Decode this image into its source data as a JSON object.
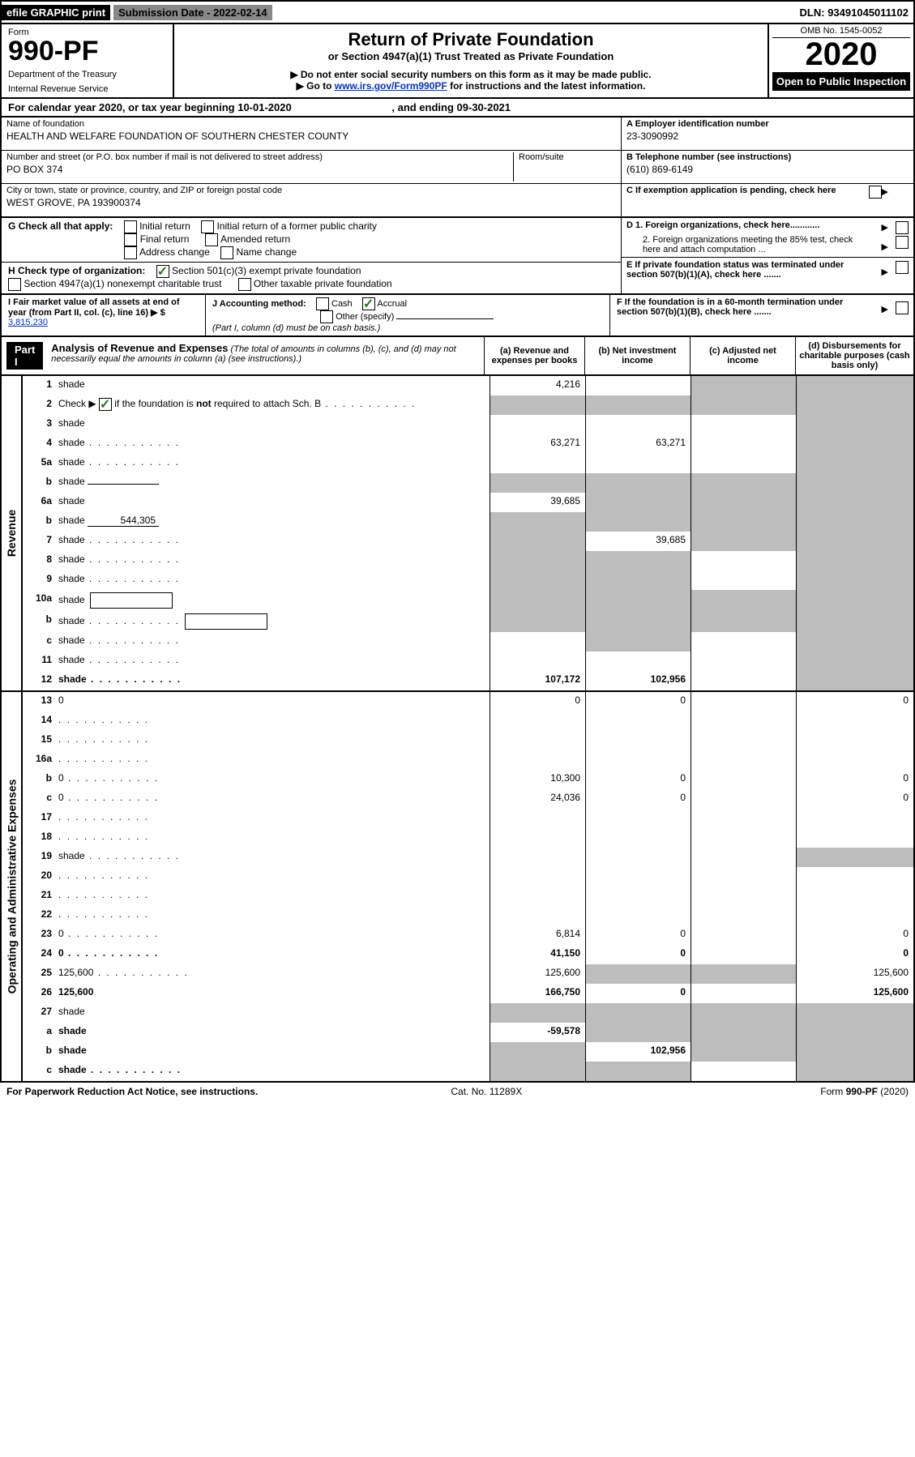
{
  "topbar": {
    "efile_label": "efile GRAPHIC print",
    "submission_label": "Submission Date - 2022-02-14",
    "dln": "DLN: 93491045011102"
  },
  "header": {
    "form_label": "Form",
    "form_number": "990-PF",
    "dept": "Department of the Treasury",
    "irs": "Internal Revenue Service",
    "title": "Return of Private Foundation",
    "subtitle": "or Section 4947(a)(1) Trust Treated as Private Foundation",
    "sub2": "▶ Do not enter social security numbers on this form as it may be made public.",
    "sub3_a": "▶ Go to ",
    "sub3_link": "www.irs.gov/Form990PF",
    "sub3_b": " for instructions and the latest information.",
    "omb": "OMB No. 1545-0052",
    "year": "2020",
    "open": "Open to Public Inspection"
  },
  "cal_year": {
    "a": "For calendar year 2020, or tax year beginning 10-01-2020",
    "b": ", and ending 09-30-2021"
  },
  "info": {
    "name_label": "Name of foundation",
    "name": "HEALTH AND WELFARE FOUNDATION OF SOUTHERN CHESTER COUNTY",
    "street_label": "Number and street (or P.O. box number if mail is not delivered to street address)",
    "street": "PO BOX 374",
    "room_label": "Room/suite",
    "city_label": "City or town, state or province, country, and ZIP or foreign postal code",
    "city": "WEST GROVE, PA  193900374",
    "A_label": "A Employer identification number",
    "A_val": "23-3090992",
    "B_label": "B Telephone number (see instructions)",
    "B_val": "(610) 869-6149",
    "C_label": "C If exemption application is pending, check here"
  },
  "G": {
    "label": "G Check all that apply:",
    "opts": [
      "Initial return",
      "Initial return of a former public charity",
      "Final return",
      "Amended return",
      "Address change",
      "Name change"
    ]
  },
  "H": {
    "label": "H Check type of organization:",
    "opt1": "Section 501(c)(3) exempt private foundation",
    "opt2": "Section 4947(a)(1) nonexempt charitable trust",
    "opt3": "Other taxable private foundation"
  },
  "D": {
    "d1": "D 1. Foreign organizations, check here............",
    "d2": "2. Foreign organizations meeting the 85% test, check here and attach computation ..."
  },
  "E": "E  If private foundation status was terminated under section 507(b)(1)(A), check here .......",
  "I": {
    "label": "I Fair market value of all assets at end of year (from Part II, col. (c), line 16) ▶ $",
    "val": "3,815,230"
  },
  "J": {
    "label": "J Accounting method:",
    "cash": "Cash",
    "accrual": "Accrual",
    "other": "Other (specify)",
    "note": "(Part I, column (d) must be on cash basis.)"
  },
  "F": "F  If the foundation is in a 60-month termination under section 507(b)(1)(B), check here .......",
  "part1": {
    "badge": "Part I",
    "title": "Analysis of Revenue and Expenses",
    "note": " (The total of amounts in columns (b), (c), and (d) may not necessarily equal the amounts in column (a) (see instructions).)",
    "col_a": "(a)  Revenue and expenses per books",
    "col_b": "(b)  Net investment income",
    "col_c": "(c)  Adjusted net income",
    "col_d": "(d)  Disbursements for charitable purposes (cash basis only)"
  },
  "rows_rev": [
    {
      "n": "1",
      "d": "shade",
      "a": "4,216",
      "b": "",
      "c": "shade"
    },
    {
      "n": "2",
      "d": "shade",
      "a": "shade",
      "b": "shade",
      "c": "shade",
      "checked": true,
      "dots": true
    },
    {
      "n": "3",
      "d": "shade",
      "a": "",
      "b": "",
      "c": ""
    },
    {
      "n": "4",
      "d": "shade",
      "a": "63,271",
      "b": "63,271",
      "c": "",
      "dots": true
    },
    {
      "n": "5a",
      "d": "shade",
      "a": "",
      "b": "",
      "c": "",
      "dots": true
    },
    {
      "n": "b",
      "d": "shade",
      "a": "shade",
      "b": "shade",
      "c": "shade",
      "inline": ""
    },
    {
      "n": "6a",
      "d": "shade",
      "a": "39,685",
      "b": "shade",
      "c": "shade"
    },
    {
      "n": "b",
      "d": "shade",
      "a": "shade",
      "b": "shade",
      "c": "shade",
      "inline": "544,305"
    },
    {
      "n": "7",
      "d": "shade",
      "a": "shade",
      "b": "39,685",
      "c": "shade",
      "dots": true
    },
    {
      "n": "8",
      "d": "shade",
      "a": "shade",
      "b": "shade",
      "c": "",
      "dots": true
    },
    {
      "n": "9",
      "d": "shade",
      "a": "shade",
      "b": "shade",
      "c": "",
      "dots": true
    },
    {
      "n": "10a",
      "d": "shade",
      "a": "shade",
      "b": "shade",
      "c": "shade",
      "box": true
    },
    {
      "n": "b",
      "d": "shade",
      "a": "shade",
      "b": "shade",
      "c": "shade",
      "box": true,
      "dots": true
    },
    {
      "n": "c",
      "d": "shade",
      "a": "",
      "b": "shade",
      "c": "",
      "dots": true
    },
    {
      "n": "11",
      "d": "shade",
      "a": "",
      "b": "",
      "c": "",
      "dots": true
    },
    {
      "n": "12",
      "d": "shade",
      "a": "107,172",
      "b": "102,956",
      "c": "",
      "bold": true,
      "dots": true
    }
  ],
  "rows_exp": [
    {
      "n": "13",
      "d": "0",
      "a": "0",
      "b": "0",
      "c": ""
    },
    {
      "n": "14",
      "d": "",
      "a": "",
      "b": "",
      "c": "",
      "dots": true
    },
    {
      "n": "15",
      "d": "",
      "a": "",
      "b": "",
      "c": "",
      "dots": true
    },
    {
      "n": "16a",
      "d": "",
      "a": "",
      "b": "",
      "c": "",
      "dots": true
    },
    {
      "n": "b",
      "d": "0",
      "a": "10,300",
      "b": "0",
      "c": "",
      "dots": true
    },
    {
      "n": "c",
      "d": "0",
      "a": "24,036",
      "b": "0",
      "c": "",
      "dots": true
    },
    {
      "n": "17",
      "d": "",
      "a": "",
      "b": "",
      "c": "",
      "dots": true
    },
    {
      "n": "18",
      "d": "",
      "a": "",
      "b": "",
      "c": "",
      "dots": true
    },
    {
      "n": "19",
      "d": "shade",
      "a": "",
      "b": "",
      "c": "",
      "dots": true
    },
    {
      "n": "20",
      "d": "",
      "a": "",
      "b": "",
      "c": "",
      "dots": true
    },
    {
      "n": "21",
      "d": "",
      "a": "",
      "b": "",
      "c": "",
      "dots": true
    },
    {
      "n": "22",
      "d": "",
      "a": "",
      "b": "",
      "c": "",
      "dots": true
    },
    {
      "n": "23",
      "d": "0",
      "a": "6,814",
      "b": "0",
      "c": "",
      "dots": true
    },
    {
      "n": "24",
      "d": "0",
      "a": "41,150",
      "b": "0",
      "c": "",
      "bold": true,
      "dots": true
    },
    {
      "n": "25",
      "d": "125,600",
      "a": "125,600",
      "b": "shade",
      "c": "shade",
      "dots": true
    },
    {
      "n": "26",
      "d": "125,600",
      "a": "166,750",
      "b": "0",
      "c": "",
      "bold": true
    },
    {
      "n": "27",
      "d": "shade",
      "a": "shade",
      "b": "shade",
      "c": "shade"
    },
    {
      "n": "a",
      "d": "shade",
      "a": "-59,578",
      "b": "shade",
      "c": "shade",
      "bold": true
    },
    {
      "n": "b",
      "d": "shade",
      "a": "shade",
      "b": "102,956",
      "c": "shade",
      "bold": true
    },
    {
      "n": "c",
      "d": "shade",
      "a": "shade",
      "b": "shade",
      "c": "",
      "bold": true,
      "dots": true
    }
  ],
  "side_labels": {
    "rev": "Revenue",
    "exp": "Operating and Administrative Expenses"
  },
  "footer": {
    "left": "For Paperwork Reduction Act Notice, see instructions.",
    "mid": "Cat. No. 11289X",
    "right": "Form 990-PF (2020)"
  },
  "colors": {
    "shade": "#bdbdbd",
    "black": "#000000",
    "link": "#0033cc",
    "check_green": "#1a7a1a"
  }
}
